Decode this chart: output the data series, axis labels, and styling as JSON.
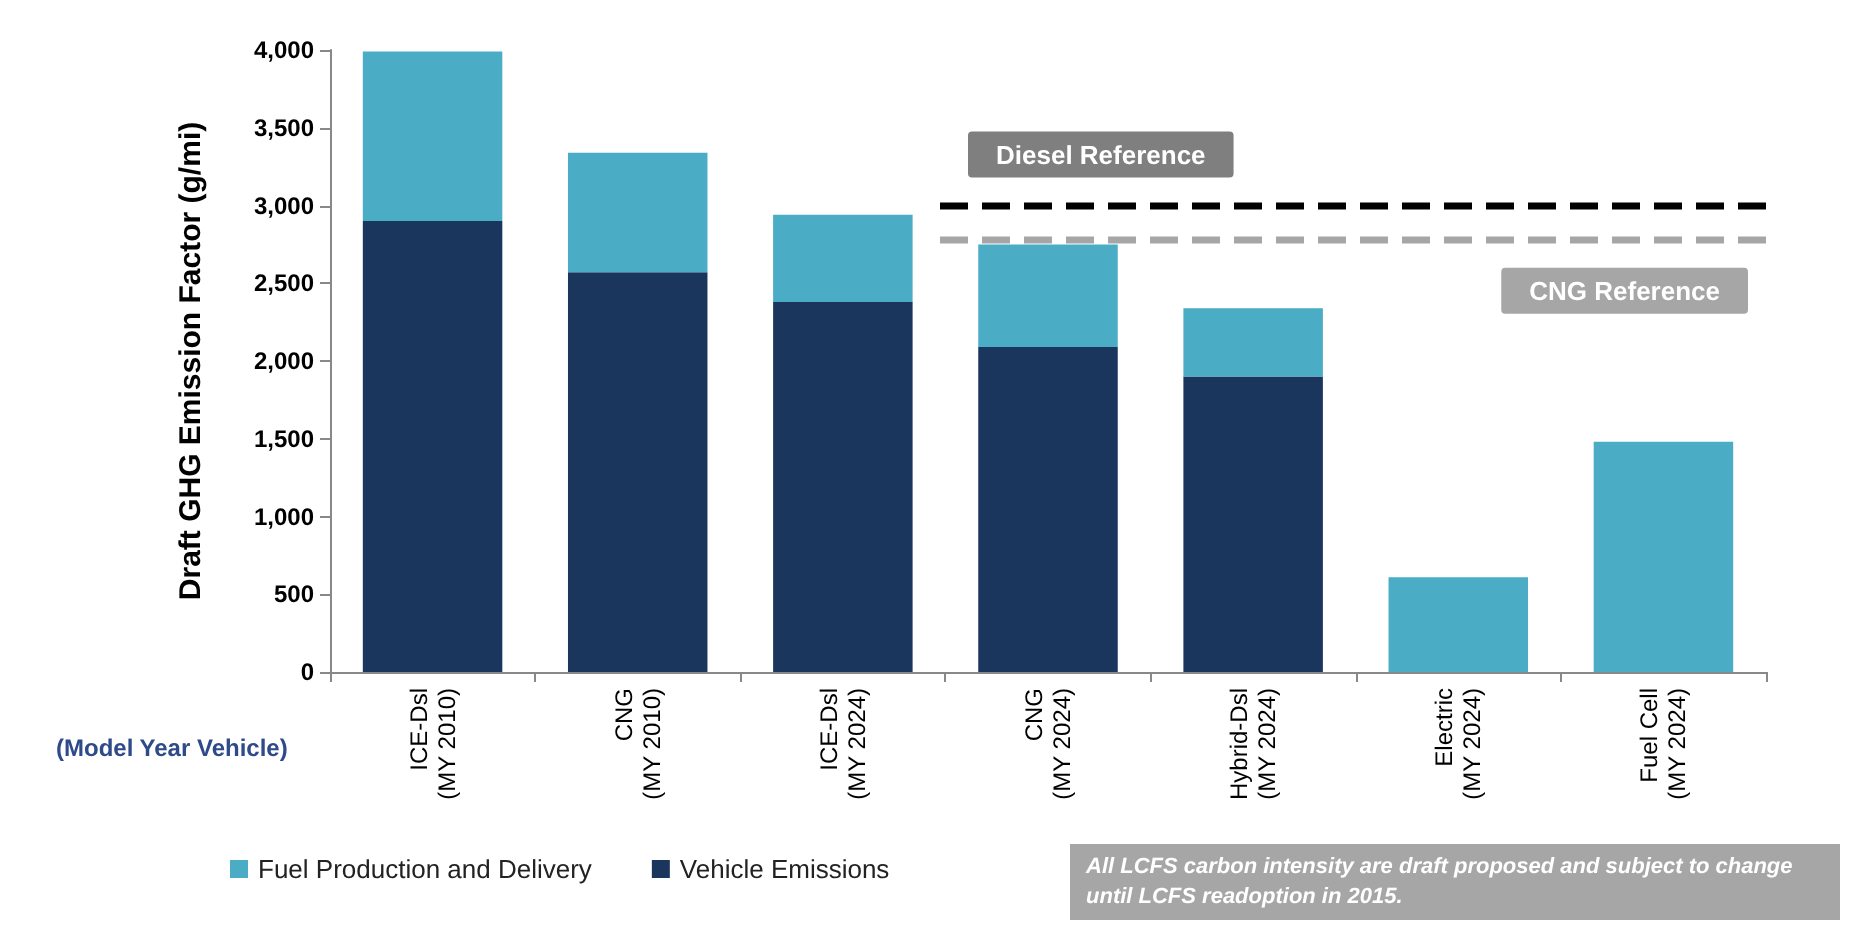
{
  "chart_data": {
    "type": "bar",
    "stacked": true,
    "ylabel": "Draft GHG Emission Factor (g/mi)",
    "categories": [
      "ICE-Dsl\n(MY 2010)",
      "CNG\n(MY 2010)",
      "ICE-Dsl\n(MY 2024)",
      "CNG\n(MY 2024)",
      "Hybrid-Dsl\n(MY 2024)",
      "Electric\n(MY 2024)",
      "Fuel Cell\n(MY 2024)"
    ],
    "series": [
      {
        "name": "Vehicle Emissions",
        "color": "#1b365d",
        "values": [
          2900,
          2570,
          2380,
          2090,
          1900,
          0,
          0
        ]
      },
      {
        "name": "Fuel Production and Delivery",
        "color": "#4bacc6",
        "values": [
          1090,
          770,
          560,
          660,
          440,
          610,
          1480
        ]
      }
    ],
    "ylim": [
      0,
      4000
    ],
    "yticks": [
      0,
      500,
      {
        "value": 1000,
        "label": "1,000"
      },
      {
        "value": 1500,
        "label": "1,500"
      },
      {
        "value": 2000,
        "label": "2,000"
      },
      {
        "value": 2500,
        "label": "2,500"
      },
      {
        "value": 3000,
        "label": "3,000"
      },
      {
        "value": 3500,
        "label": "3,500"
      },
      {
        "value": 4000,
        "label": "4,000"
      }
    ],
    "grid": false,
    "legend": "bottom left",
    "ref_lines": [
      {
        "axis": "y",
        "value": 3000,
        "label": "Diesel Reference",
        "color": "#000000",
        "line_style": "dashed"
      },
      {
        "axis": "y",
        "value": 2780,
        "label": "CNG Reference",
        "color": "#a6a6a6",
        "line_style": "dashed"
      }
    ],
    "annotations": [
      "(Model Year Vehicle)",
      "All LCFS carbon intensity are draft proposed and subject to change until LCFS readoption in 2015."
    ]
  }
}
